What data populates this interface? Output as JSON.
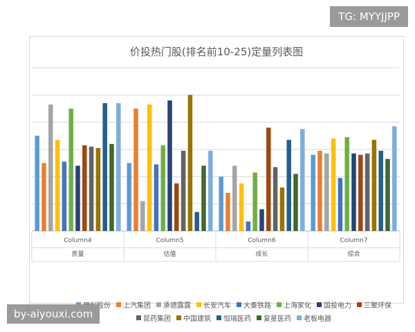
{
  "watermarks": {
    "top_right": "TG: MYYJJPP",
    "bottom_left": "by-aiyouxi.com"
  },
  "chart_data": {
    "type": "bar",
    "title": "价投热门股(排名前10-25)定量列表图",
    "ylim": [
      0,
      120
    ],
    "yticks": [
      "0.0",
      "20.0",
      "40.0",
      "60.0",
      "80.0",
      "100.0",
      "120.0"
    ],
    "categories": [
      {
        "column": "Column4",
        "label": "质量"
      },
      {
        "column": "Column5",
        "label": "估值"
      },
      {
        "column": "Column6",
        "label": "成长"
      },
      {
        "column": "Column7",
        "label": "综合"
      }
    ],
    "grid": true,
    "legend_position": "bottom",
    "series": [
      {
        "name": "伊利股份",
        "color": "#5b9bd5",
        "values": [
          70,
          50,
          40,
          56
        ]
      },
      {
        "name": "上汽集团",
        "color": "#ed7d31",
        "values": [
          50,
          90,
          28,
          59
        ]
      },
      {
        "name": "承德露露",
        "color": "#a5a5a5",
        "values": [
          93,
          22,
          48,
          57
        ]
      },
      {
        "name": "长安汽车",
        "color": "#ffc000",
        "values": [
          67,
          93,
          35,
          68
        ]
      },
      {
        "name": "大秦铁路",
        "color": "#4472c4",
        "values": [
          51,
          49,
          7,
          39
        ]
      },
      {
        "name": "上海家化",
        "color": "#70ad47",
        "values": [
          90,
          63,
          43,
          69
        ]
      },
      {
        "name": "国投电力",
        "color": "#264478",
        "values": [
          48,
          96,
          16,
          57
        ]
      },
      {
        "name": "三聚环保",
        "color": "#9e480e",
        "values": [
          63,
          35,
          76,
          56
        ]
      },
      {
        "name": "昆药集团",
        "color": "#636363",
        "values": [
          62,
          59,
          47,
          57
        ]
      },
      {
        "name": "中国建筑",
        "color": "#997300",
        "values": [
          61,
          100,
          32,
          67
        ]
      },
      {
        "name": "恒瑞医药",
        "color": "#255e91",
        "values": [
          94,
          14,
          67,
          59
        ]
      },
      {
        "name": "复星医药",
        "color": "#43682b",
        "values": [
          64,
          48,
          42,
          53
        ]
      },
      {
        "name": "老板电器",
        "color": "#7cafdd",
        "values": [
          94,
          59,
          75,
          77
        ]
      }
    ]
  }
}
